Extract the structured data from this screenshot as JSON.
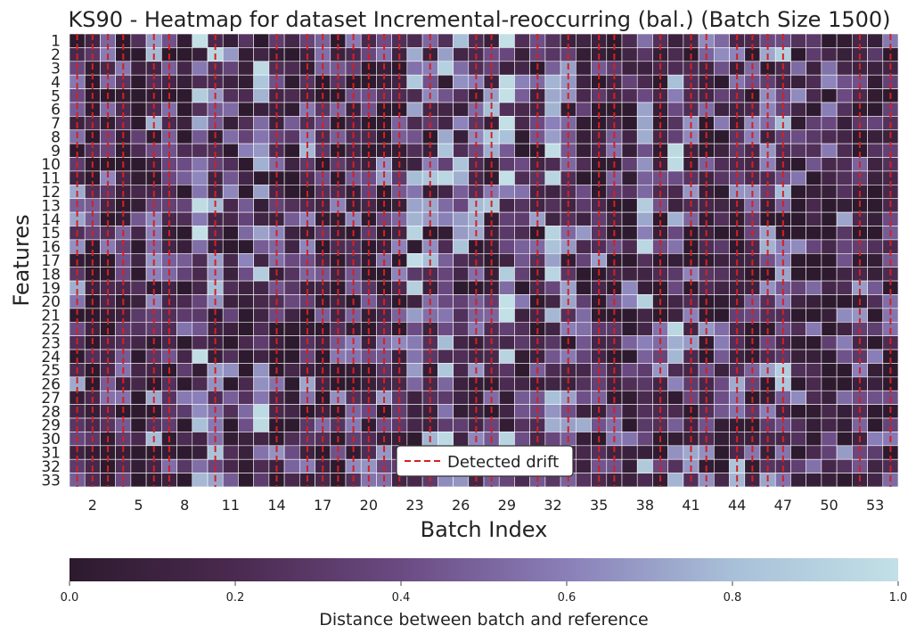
{
  "chart_data": {
    "type": "heatmap",
    "title": "KS90 - Heatmap for dataset Incremental-reoccurring (bal.) (Batch Size 1500)",
    "xlabel": "Batch Index",
    "ylabel": "Features",
    "x_count": 54,
    "y_count": 33,
    "x_tick_labels": [
      "2",
      "5",
      "8",
      "11",
      "14",
      "17",
      "20",
      "23",
      "26",
      "29",
      "32",
      "35",
      "38",
      "41",
      "44",
      "47",
      "50",
      "53"
    ],
    "y_tick_labels": [
      "1",
      "2",
      "3",
      "4",
      "5",
      "6",
      "7",
      "8",
      "9",
      "10",
      "11",
      "12",
      "13",
      "14",
      "15",
      "16",
      "17",
      "18",
      "19",
      "20",
      "21",
      "22",
      "23",
      "24",
      "25",
      "26",
      "27",
      "28",
      "29",
      "30",
      "31",
      "32",
      "33"
    ],
    "colorbar": {
      "label": "Distance between batch and reference",
      "range": [
        0.0,
        1.0
      ],
      "ticks": [
        "0.0",
        "0.2",
        "0.4",
        "0.6",
        "0.8",
        "1.0"
      ],
      "colormap": [
        "#2d1a2e",
        "#4a2a4f",
        "#6b4a82",
        "#8a7fb8",
        "#a8c0d8",
        "#c2e0e6"
      ]
    },
    "legend": {
      "label": "Detected drift",
      "placement": "bottom-center",
      "line_color": "#d62020"
    },
    "column_base_values": [
      0.35,
      0.12,
      0.18,
      0.12,
      0.05,
      0.42,
      0.2,
      0.15,
      0.62,
      0.5,
      0.3,
      0.2,
      0.55,
      0.22,
      0.1,
      0.35,
      0.15,
      0.2,
      0.2,
      0.25,
      0.25,
      0.2,
      0.55,
      0.4,
      0.6,
      0.45,
      0.35,
      0.45,
      0.65,
      0.4,
      0.35,
      0.55,
      0.35,
      0.3,
      0.25,
      0.15,
      0.2,
      0.55,
      0.25,
      0.55,
      0.3,
      0.3,
      0.25,
      0.4,
      0.3,
      0.35,
      0.45,
      0.2,
      0.15,
      0.2,
      0.3,
      0.25,
      0.2,
      0.15
    ],
    "drift_batches": [
      1,
      2,
      3,
      4,
      6,
      7,
      10,
      14,
      16,
      17,
      18,
      19,
      20,
      21,
      22,
      24,
      27,
      28,
      31,
      33,
      35,
      36,
      39,
      41,
      42,
      44,
      45,
      46,
      47,
      52,
      54
    ]
  }
}
